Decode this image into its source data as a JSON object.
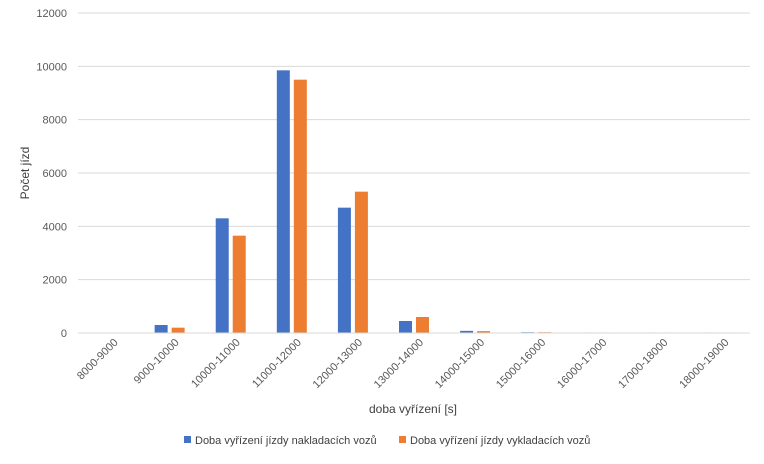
{
  "chart_data": {
    "type": "bar",
    "title": "",
    "xlabel": "doba vyřízení [s]",
    "ylabel": "Počet jízd",
    "ylim": [
      0,
      12000
    ],
    "yticks": [
      0,
      2000,
      4000,
      6000,
      8000,
      10000,
      12000
    ],
    "grid": true,
    "legend_position": "bottom",
    "categories": [
      "8000-9000",
      "9000-10000",
      "10000-11000",
      "11000-12000",
      "12000-13000",
      "13000-14000",
      "14000-15000",
      "15000-16000",
      "16000-17000",
      "17000-18000",
      "18000-19000"
    ],
    "series": [
      {
        "name": "Doba vyřízení jízdy nakladacích vozů",
        "color": "#4472C4",
        "values": [
          0,
          300,
          4300,
          9850,
          4700,
          450,
          80,
          30,
          20,
          20,
          20
        ]
      },
      {
        "name": "Doba vyřízení jízdy vykladacích vozů",
        "color": "#ED7D31",
        "values": [
          0,
          200,
          3650,
          9500,
          5300,
          600,
          70,
          30,
          20,
          20,
          20
        ]
      }
    ]
  }
}
